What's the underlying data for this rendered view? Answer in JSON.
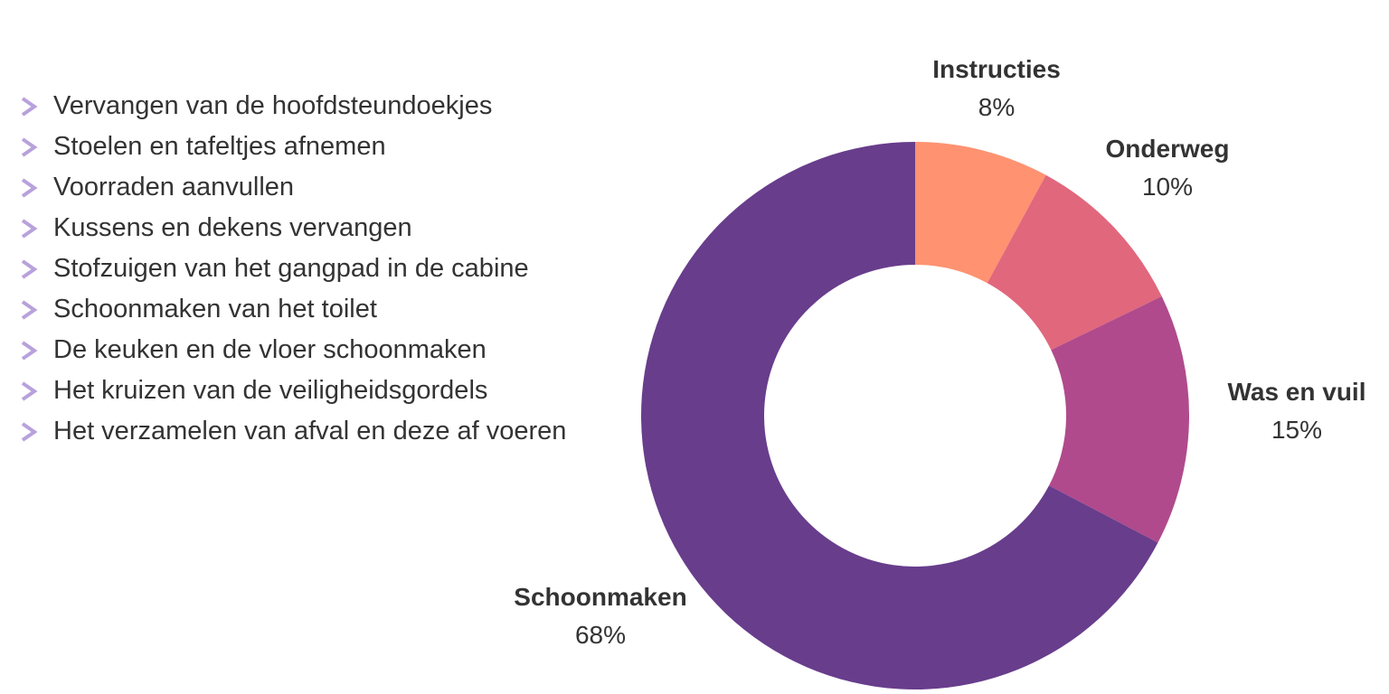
{
  "tasks": {
    "bullet_color": "#b8a1dc",
    "items": [
      "Vervangen van de hoofdsteundoekjes",
      "Stoelen en tafeltjes afnemen",
      "Voorraden aanvullen",
      "Kussens en dekens vervangen",
      "Stofzuigen van het gangpad in de cabine",
      "Schoonmaken van het toilet",
      "De keuken en de vloer schoonmaken",
      "Het kruizen van de veiligheidsgordels",
      "Het verzamelen van afval en deze af voeren"
    ]
  },
  "chart_data": {
    "type": "pie",
    "variant": "donut",
    "start": "top",
    "direction": "clockwise",
    "slices": [
      {
        "label": "Instructies",
        "value": 8,
        "display": "8%",
        "color": "#fe9271"
      },
      {
        "label": "Onderweg",
        "value": 10,
        "display": "10%",
        "color": "#e1677c"
      },
      {
        "label": "Was en vuil",
        "value": 15,
        "display": "15%",
        "color": "#b04a8c"
      },
      {
        "label": "Schoonmaken",
        "value": 68,
        "display": "68%",
        "color": "#683d8c"
      }
    ]
  }
}
